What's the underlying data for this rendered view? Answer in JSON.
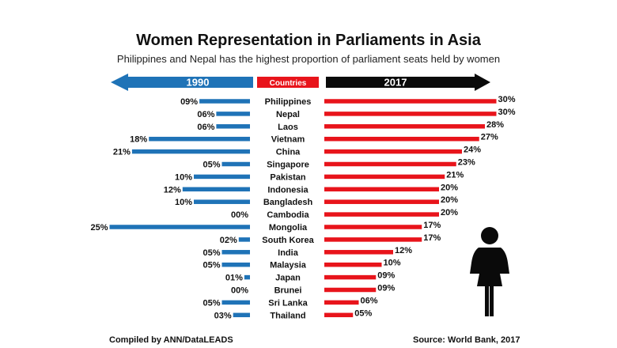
{
  "chart_data": {
    "type": "bar",
    "title": "Women Representation in Parliaments in Asia",
    "subtitle": "Philippines and Nepal has the highest proportion of parliament seats held by women",
    "header_left": "1990",
    "header_center": "Countries",
    "header_right": "2017",
    "categories": [
      "Philippines",
      "Nepal",
      "Laos",
      "Vietnam",
      "China",
      "Singapore",
      "Pakistan",
      "Indonesia",
      "Bangladesh",
      "Cambodia",
      "Mongolia",
      "South Korea",
      "India",
      "Malaysia",
      "Japan",
      "Brunei",
      "Sri Lanka",
      "Thailand"
    ],
    "series": [
      {
        "name": "1990",
        "values": [
          9,
          6,
          6,
          18,
          21,
          5,
          10,
          12,
          10,
          0,
          25,
          2,
          5,
          5,
          1,
          0,
          5,
          3
        ],
        "labels": [
          "09%",
          "06%",
          "06%",
          "18%",
          "21%",
          "05%",
          "10%",
          "12%",
          "10%",
          "00%",
          "25%",
          "02%",
          "05%",
          "05%",
          "01%",
          "00%",
          "05%",
          "03%"
        ]
      },
      {
        "name": "2017",
        "values": [
          30,
          30,
          28,
          27,
          24,
          23,
          21,
          20,
          20,
          20,
          17,
          17,
          12,
          10,
          9,
          9,
          6,
          5
        ],
        "labels": [
          "30%",
          "30%",
          "28%",
          "27%",
          "24%",
          "23%",
          "21%",
          "20%",
          "20%",
          "20%",
          "17%",
          "17%",
          "12%",
          "10%",
          "09%",
          "09%",
          "06%",
          "05%"
        ]
      }
    ],
    "colors": {
      "left": "#1f73b7",
      "right": "#e8141b",
      "center": "#e8141b",
      "right_arrow": "#0a0a0a"
    },
    "icon": "woman-icon"
  },
  "footer": {
    "left": "Compiled by ANN/DataLEADS",
    "right": "Source: World Bank, 2017"
  }
}
